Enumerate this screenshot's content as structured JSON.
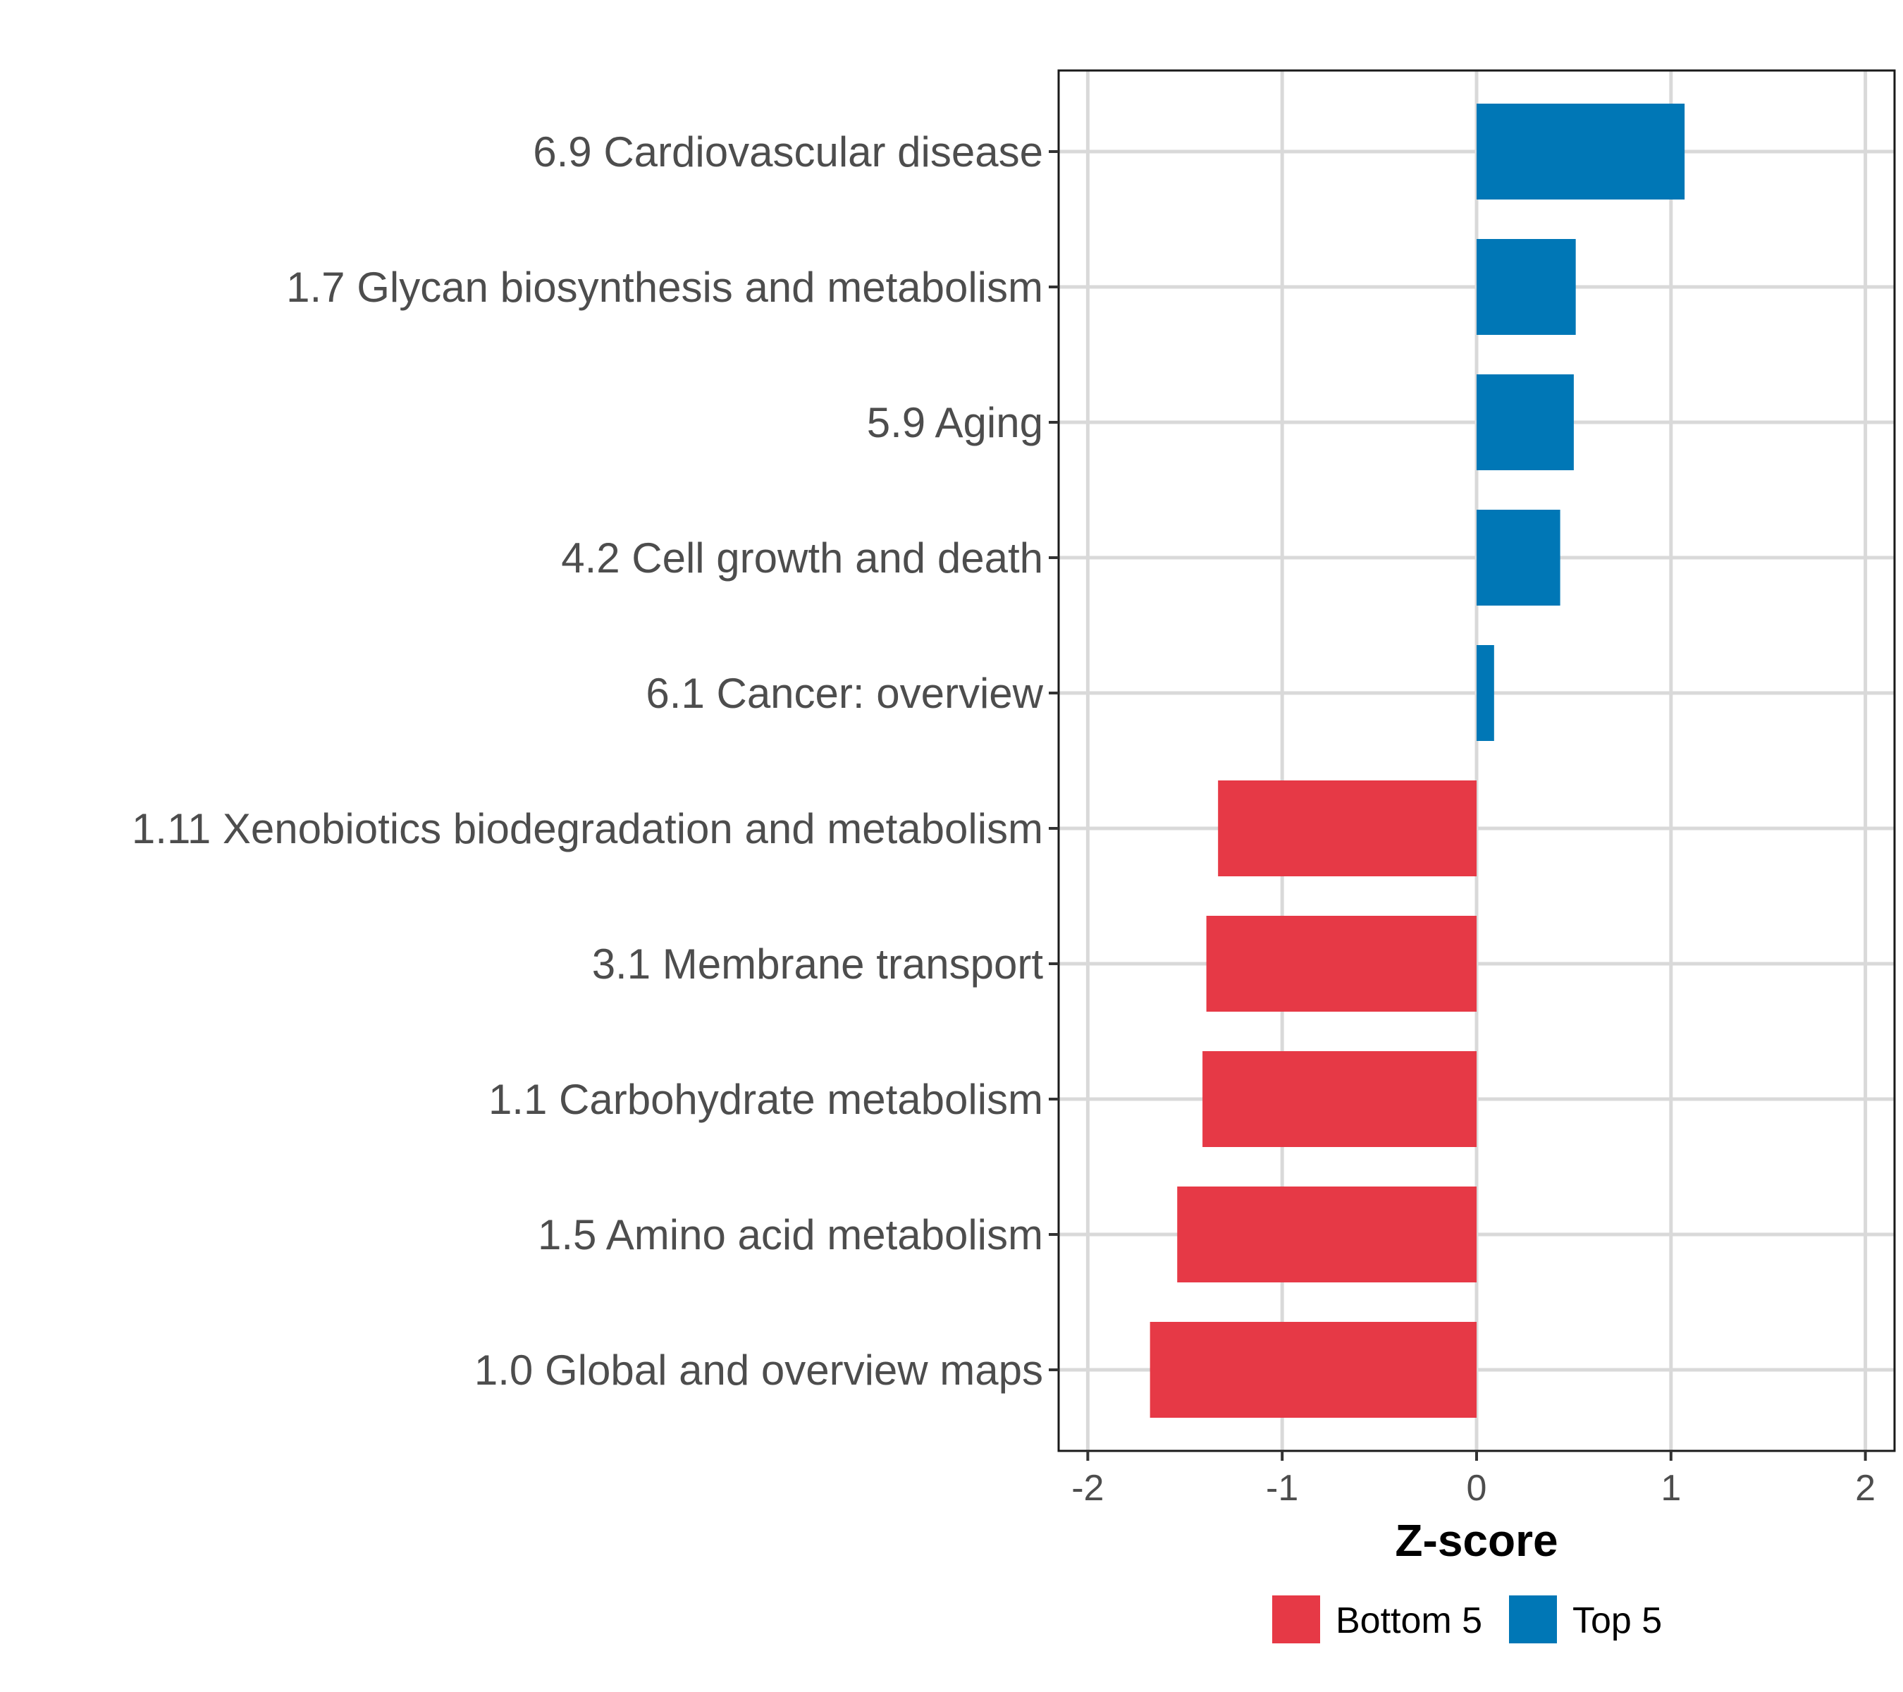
{
  "chart_data": {
    "type": "bar",
    "orientation": "horizontal",
    "categories": [
      "6.9 Cardiovascular disease",
      "1.7 Glycan biosynthesis and metabolism",
      "5.9 Aging",
      "4.2 Cell growth and death",
      "6.1 Cancer: overview",
      "1.11 Xenobiotics biodegradation and metabolism",
      "3.1 Membrane transport",
      "1.1 Carbohydrate metabolism",
      "1.5 Amino acid metabolism",
      "1.0 Global and overview maps"
    ],
    "values": [
      1.07,
      0.51,
      0.5,
      0.43,
      0.09,
      -1.33,
      -1.39,
      -1.41,
      -1.54,
      -1.68
    ],
    "groups": [
      "Top 5",
      "Top 5",
      "Top 5",
      "Top 5",
      "Top 5",
      "Bottom 5",
      "Bottom 5",
      "Bottom 5",
      "Bottom 5",
      "Bottom 5"
    ],
    "xlabel": "Z-score",
    "ylabel": "",
    "xlim": [
      -2.15,
      2.15
    ],
    "x_ticks": [
      -2,
      -1,
      0,
      1,
      2
    ],
    "x_tick_labels": [
      "-2",
      "-1",
      "0",
      "1",
      "2"
    ],
    "grid": true,
    "legend": {
      "placement": "bottom",
      "entries": [
        {
          "label": "Bottom 5",
          "color": "#e63946"
        },
        {
          "label": "Top 5",
          "color": "#0077b6"
        }
      ]
    }
  }
}
